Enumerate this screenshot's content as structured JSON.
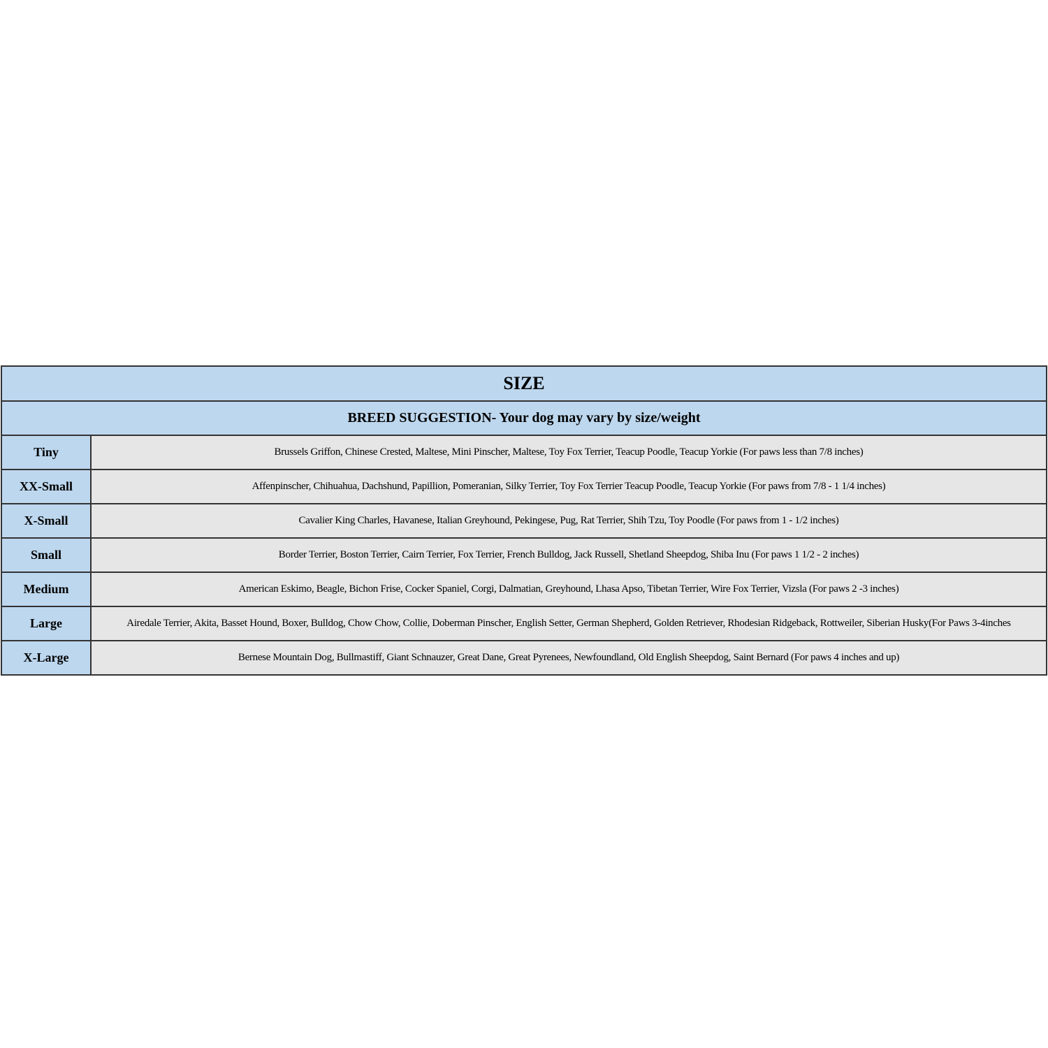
{
  "table": {
    "title": "SIZE",
    "subtitle": "BREED SUGGESTION- Your dog may vary by size/weight",
    "rows": [
      [
        "Tiny",
        "Brussels Griffon, Chinese Crested, Maltese, Mini Pinscher, Maltese, Toy Fox Terrier, Teacup Poodle, Teacup Yorkie (For paws less than 7/8 inches)"
      ],
      [
        "XX-Small",
        "Affenpinscher, Chihuahua, Dachshund, Papillion, Pomeranian, Silky Terrier, Toy Fox Terrier Teacup Poodle, Teacup Yorkie (For paws from 7/8 - 1 1/4 inches)"
      ],
      [
        "X-Small",
        "Cavalier King Charles, Havanese, Italian Greyhound, Pekingese, Pug, Rat Terrier, Shih Tzu, Toy Poodle (For paws from 1 - 1/2 inches)"
      ],
      [
        "Small",
        "Border Terrier, Boston Terrier, Cairn Terrier, Fox Terrier, French Bulldog, Jack Russell, Shetland Sheepdog, Shiba Inu (For paws 1 1/2 - 2 inches)"
      ],
      [
        "Medium",
        "American Eskimo, Beagle, Bichon Frise, Cocker Spaniel, Corgi, Dalmatian, Greyhound, Lhasa Apso, Tibetan Terrier, Wire Fox Terrier, Vizsla (For paws 2 -3 inches)"
      ],
      [
        "Large",
        "Airedale Terrier, Akita, Basset Hound, Boxer, Bulldog, Chow Chow, Collie, Doberman Pinscher, English Setter, German Shepherd, Golden Retriever, Rhodesian Ridgeback, Rottweiler, Siberian Husky(For Paws 3-4inches"
      ],
      [
        "X-Large",
        "Bernese Mountain Dog, Bullmastiff, Giant Schnauzer, Great Dane, Great Pyrenees, Newfoundland, Old English Sheepdog, Saint Bernard (For paws 4 inches and up)"
      ]
    ]
  }
}
